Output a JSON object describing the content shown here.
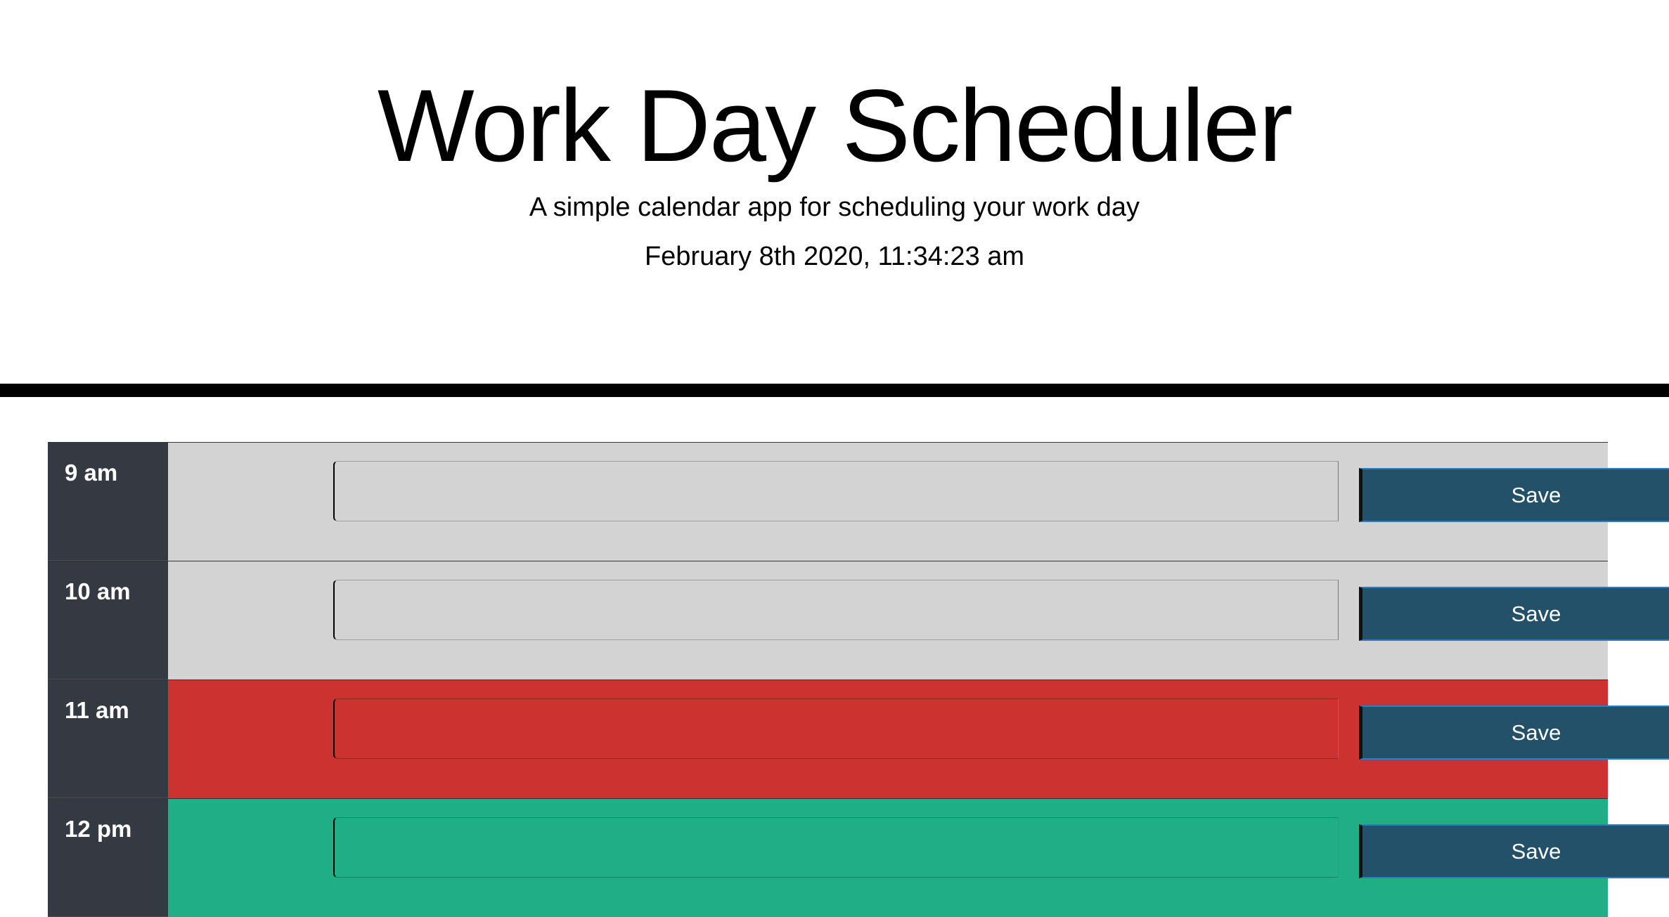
{
  "header": {
    "title": "Work Day Scheduler",
    "subtitle": "A simple calendar app for scheduling your work day",
    "current_datetime": "February 8th 2020, 11:34:23 am"
  },
  "colors": {
    "past": "#d3d3d3",
    "present": "#cb3230",
    "future": "#1fae86",
    "hour_column": "#353a42",
    "save_button": "#24516a"
  },
  "timeblocks": [
    {
      "hour": "9 am",
      "state": "past",
      "text": "",
      "save_label": "Save",
      "icon": "save-button"
    },
    {
      "hour": "10 am",
      "state": "past",
      "text": "",
      "save_label": "Save",
      "icon": "save-button"
    },
    {
      "hour": "11 am",
      "state": "present",
      "text": "",
      "save_label": "Save",
      "icon": "save-button"
    },
    {
      "hour": "12 pm",
      "state": "future",
      "text": "",
      "save_label": "Save",
      "icon": "save-button"
    }
  ]
}
